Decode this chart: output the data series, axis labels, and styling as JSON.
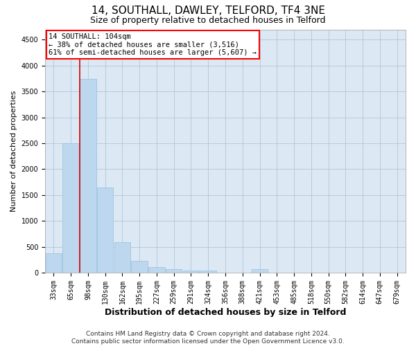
{
  "title1": "14, SOUTHALL, DAWLEY, TELFORD, TF4 3NE",
  "title2": "Size of property relative to detached houses in Telford",
  "xlabel": "Distribution of detached houses by size in Telford",
  "ylabel": "Number of detached properties",
  "footer1": "Contains HM Land Registry data © Crown copyright and database right 2024.",
  "footer2": "Contains public sector information licensed under the Open Government Licence v3.0.",
  "annotation_title": "14 SOUTHALL: 104sqm",
  "annotation_line1": "← 38% of detached houses are smaller (3,516)",
  "annotation_line2": "61% of semi-detached houses are larger (5,607) →",
  "bar_categories": [
    "33sqm",
    "65sqm",
    "98sqm",
    "130sqm",
    "162sqm",
    "195sqm",
    "227sqm",
    "259sqm",
    "291sqm",
    "324sqm",
    "356sqm",
    "388sqm",
    "421sqm",
    "453sqm",
    "485sqm",
    "518sqm",
    "550sqm",
    "582sqm",
    "614sqm",
    "647sqm",
    "679sqm"
  ],
  "bar_values": [
    370,
    2500,
    3750,
    1640,
    590,
    230,
    110,
    70,
    45,
    35,
    0,
    0,
    60,
    0,
    0,
    0,
    0,
    0,
    0,
    0,
    0
  ],
  "bar_color": "#bdd7ee",
  "bar_edgecolor": "#9ec4e0",
  "vline_color": "#cc0000",
  "ylim": [
    0,
    4700
  ],
  "yticks": [
    0,
    500,
    1000,
    1500,
    2000,
    2500,
    3000,
    3500,
    4000,
    4500
  ],
  "background_color": "#ffffff",
  "plot_bg_color": "#dce9f5",
  "grid_color": "#b0c4d8",
  "title1_fontsize": 11,
  "title2_fontsize": 9,
  "xlabel_fontsize": 9,
  "ylabel_fontsize": 8,
  "tick_fontsize": 7,
  "annotation_fontsize": 7.5,
  "footer_fontsize": 6.5
}
